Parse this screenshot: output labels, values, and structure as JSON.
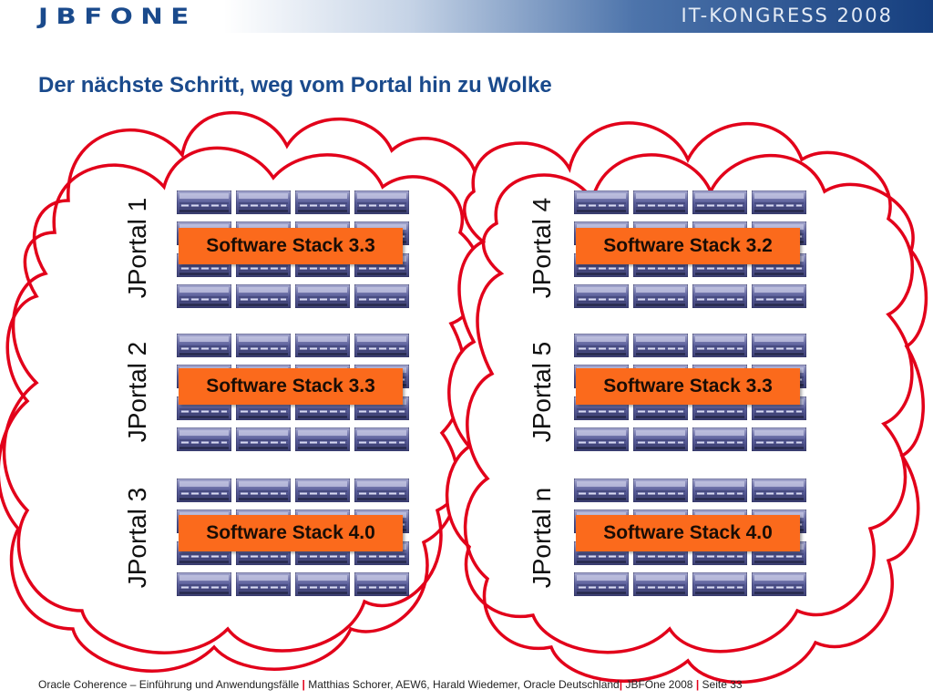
{
  "header": {
    "logo_text": "JBFONE",
    "congress": "IT-KONGRESS 2008"
  },
  "slide": {
    "title": "Der nächste Schritt, weg vom Portal hin zu Wolke"
  },
  "clouds": [
    {
      "groups": [
        {
          "portal": "JPortal 1",
          "stack": "Software Stack 3.3"
        },
        {
          "portal": "JPortal 2",
          "stack": "Software Stack 3.3"
        },
        {
          "portal": "JPortal 3",
          "stack": "Software Stack 4.0"
        }
      ]
    },
    {
      "groups": [
        {
          "portal": "JPortal 4",
          "stack": "Software Stack 3.2"
        },
        {
          "portal": "JPortal 5",
          "stack": "Software Stack 3.3"
        },
        {
          "portal": "JPortal n",
          "stack": "Software Stack 4.0"
        }
      ]
    }
  ],
  "footer": {
    "part1": "Oracle Coherence – Einführung und Anwendungsfälle",
    "part2": "Matthias Schorer, AEW6, Harald Wiedemer, Oracle Deutschland",
    "part3": "JBFOne 2008",
    "part4": "Seite 33",
    "separator": "|"
  },
  "colors": {
    "cloud_outline": "#e2001a",
    "stack_box": "#fb6a1c",
    "title": "#1a4a8c",
    "server": "#5a5e9a"
  }
}
